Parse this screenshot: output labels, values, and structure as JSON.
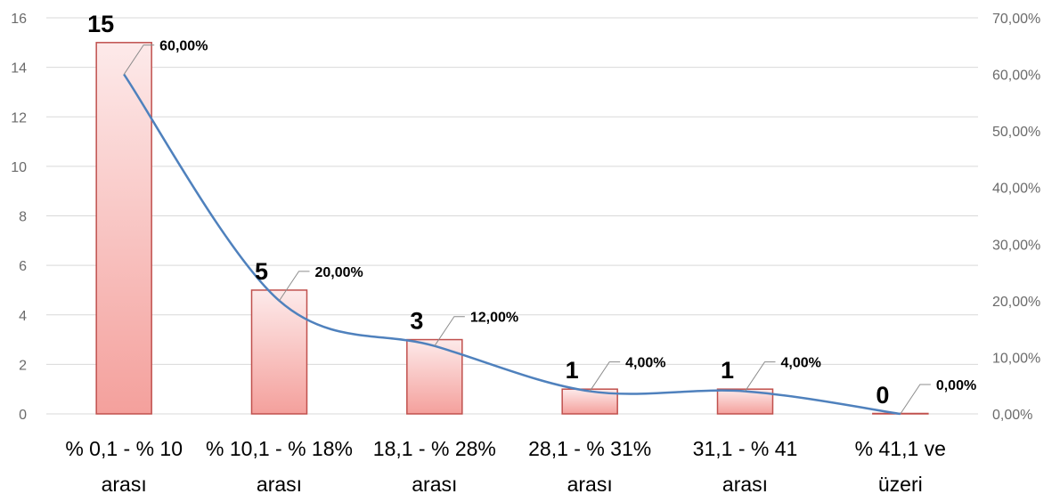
{
  "chart_data": {
    "type": "bar",
    "categories": [
      [
        "% 0,1 - % 10",
        "arası"
      ],
      [
        "% 10,1 - % 18%",
        "arası"
      ],
      [
        "18,1 - % 28%",
        "arası"
      ],
      [
        "28,1 - % 31%",
        "arası"
      ],
      [
        "31,1 - % 41",
        "arası"
      ],
      [
        "% 41,1 ve",
        "üzeri"
      ]
    ],
    "series": [
      {
        "type": "bar",
        "axis": "left",
        "values": [
          15,
          5,
          3,
          1,
          1,
          0
        ],
        "labels": [
          "15",
          "5",
          "3",
          "1",
          "1",
          "0"
        ],
        "color": "#c0504d"
      },
      {
        "type": "line",
        "smooth": true,
        "axis": "right",
        "values": [
          60,
          20,
          12,
          4,
          4,
          0
        ],
        "labels": [
          "60,00%",
          "20,00%",
          "12,00%",
          "4,00%",
          "4,00%",
          "0,00%"
        ],
        "color": "#4f81bd"
      }
    ],
    "y_left": {
      "min": 0,
      "max": 16,
      "ticks": [
        0,
        2,
        4,
        6,
        8,
        10,
        12,
        14,
        16
      ],
      "tick_labels": [
        "0",
        "2",
        "4",
        "6",
        "8",
        "10",
        "12",
        "14",
        "16"
      ]
    },
    "y_right": {
      "min": 0,
      "max": 70,
      "ticks": [
        0,
        10,
        20,
        30,
        40,
        50,
        60,
        70
      ],
      "tick_labels": [
        "0,00%",
        "10,00%",
        "20,00%",
        "30,00%",
        "40,00%",
        "50,00%",
        "60,00%",
        "70,00%"
      ]
    },
    "grid": true,
    "legend": "none"
  }
}
